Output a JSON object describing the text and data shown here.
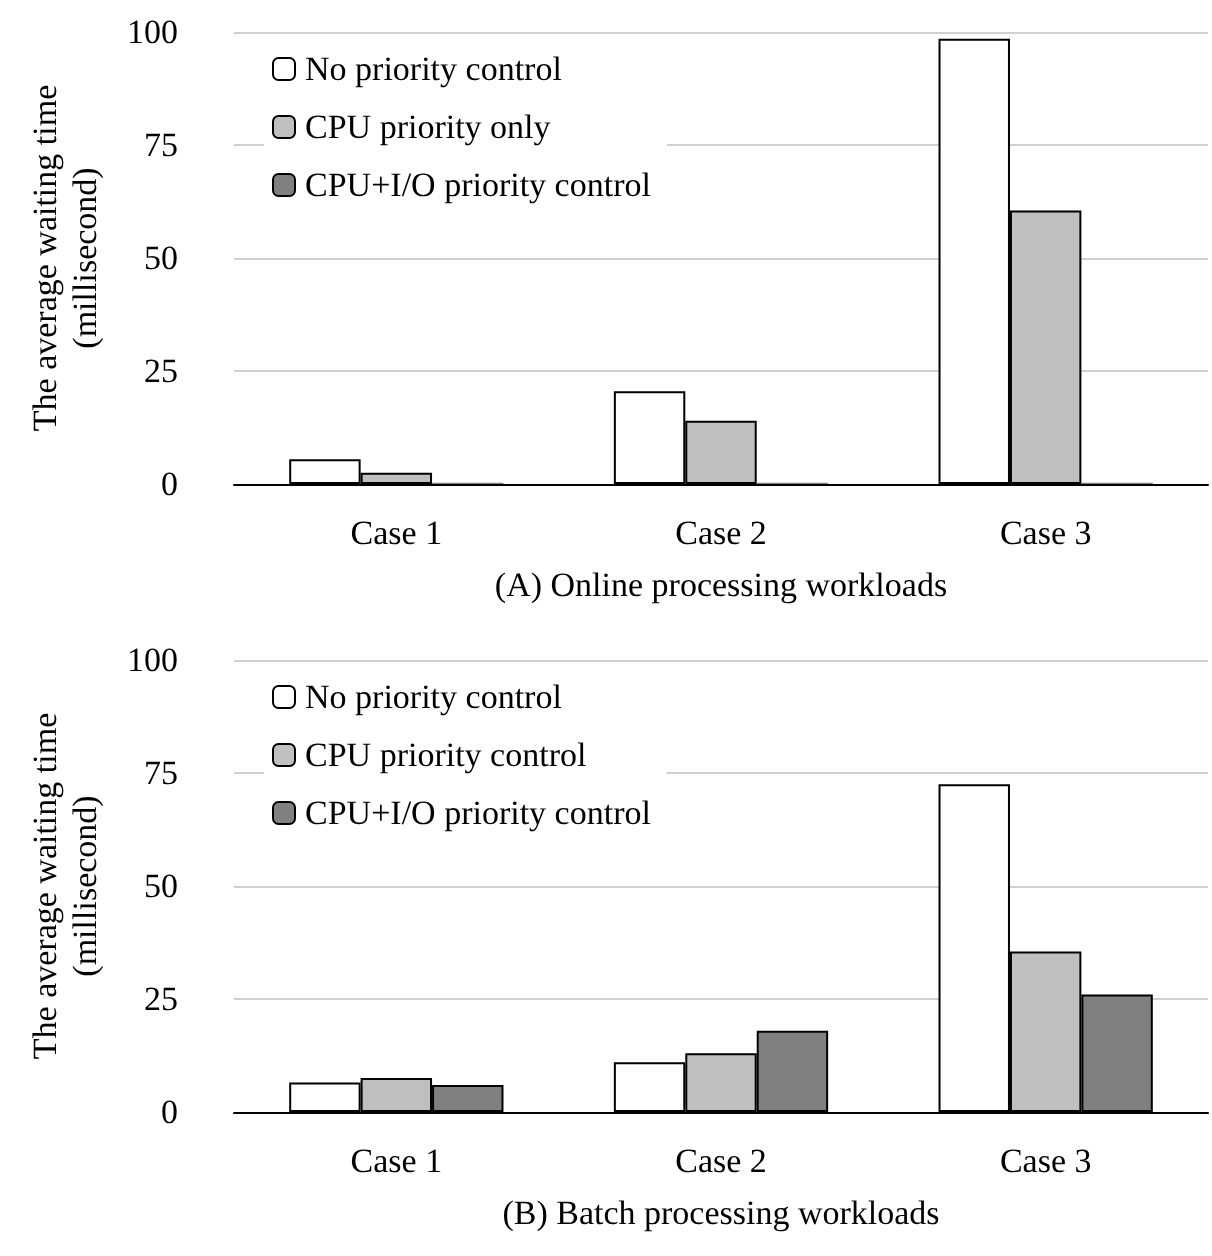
{
  "chart_data": [
    {
      "type": "bar",
      "xlabel": "(A) Online processing workloads",
      "ylabel": "The average waiting time\n(millisecond)",
      "categories": [
        "Case 1",
        "Case 2",
        "Case 3"
      ],
      "series": [
        {
          "name": "No priority control",
          "color": "#ffffff",
          "values": [
            5.5,
            20.5,
            98.5
          ]
        },
        {
          "name": "CPU priority only",
          "color": "#bfbfbf",
          "values": [
            2.5,
            14,
            60.5
          ]
        },
        {
          "name": "CPU+I/O priority control",
          "color": "#808080",
          "values": [
            0.3,
            0.3,
            0.3
          ]
        }
      ],
      "ylim": [
        0,
        100
      ],
      "yticks": [
        0,
        25,
        50,
        75,
        100
      ],
      "grid": "y",
      "legend": "top left"
    },
    {
      "type": "bar",
      "xlabel": "(B) Batch processing workloads",
      "ylabel": "The average waiting time\n(millisecond)",
      "categories": [
        "Case 1",
        "Case 2",
        "Case 3"
      ],
      "series": [
        {
          "name": "No priority control",
          "color": "#ffffff",
          "values": [
            6.5,
            11,
            72.5
          ]
        },
        {
          "name": "CPU priority control",
          "color": "#bfbfbf",
          "values": [
            7.5,
            13,
            35.5
          ]
        },
        {
          "name": "CPU+I/O priority control",
          "color": "#808080",
          "values": [
            6,
            18,
            26
          ]
        }
      ],
      "ylim": [
        0,
        100
      ],
      "yticks": [
        0,
        25,
        50,
        75,
        100
      ],
      "grid": "y",
      "legend": "top left"
    }
  ]
}
